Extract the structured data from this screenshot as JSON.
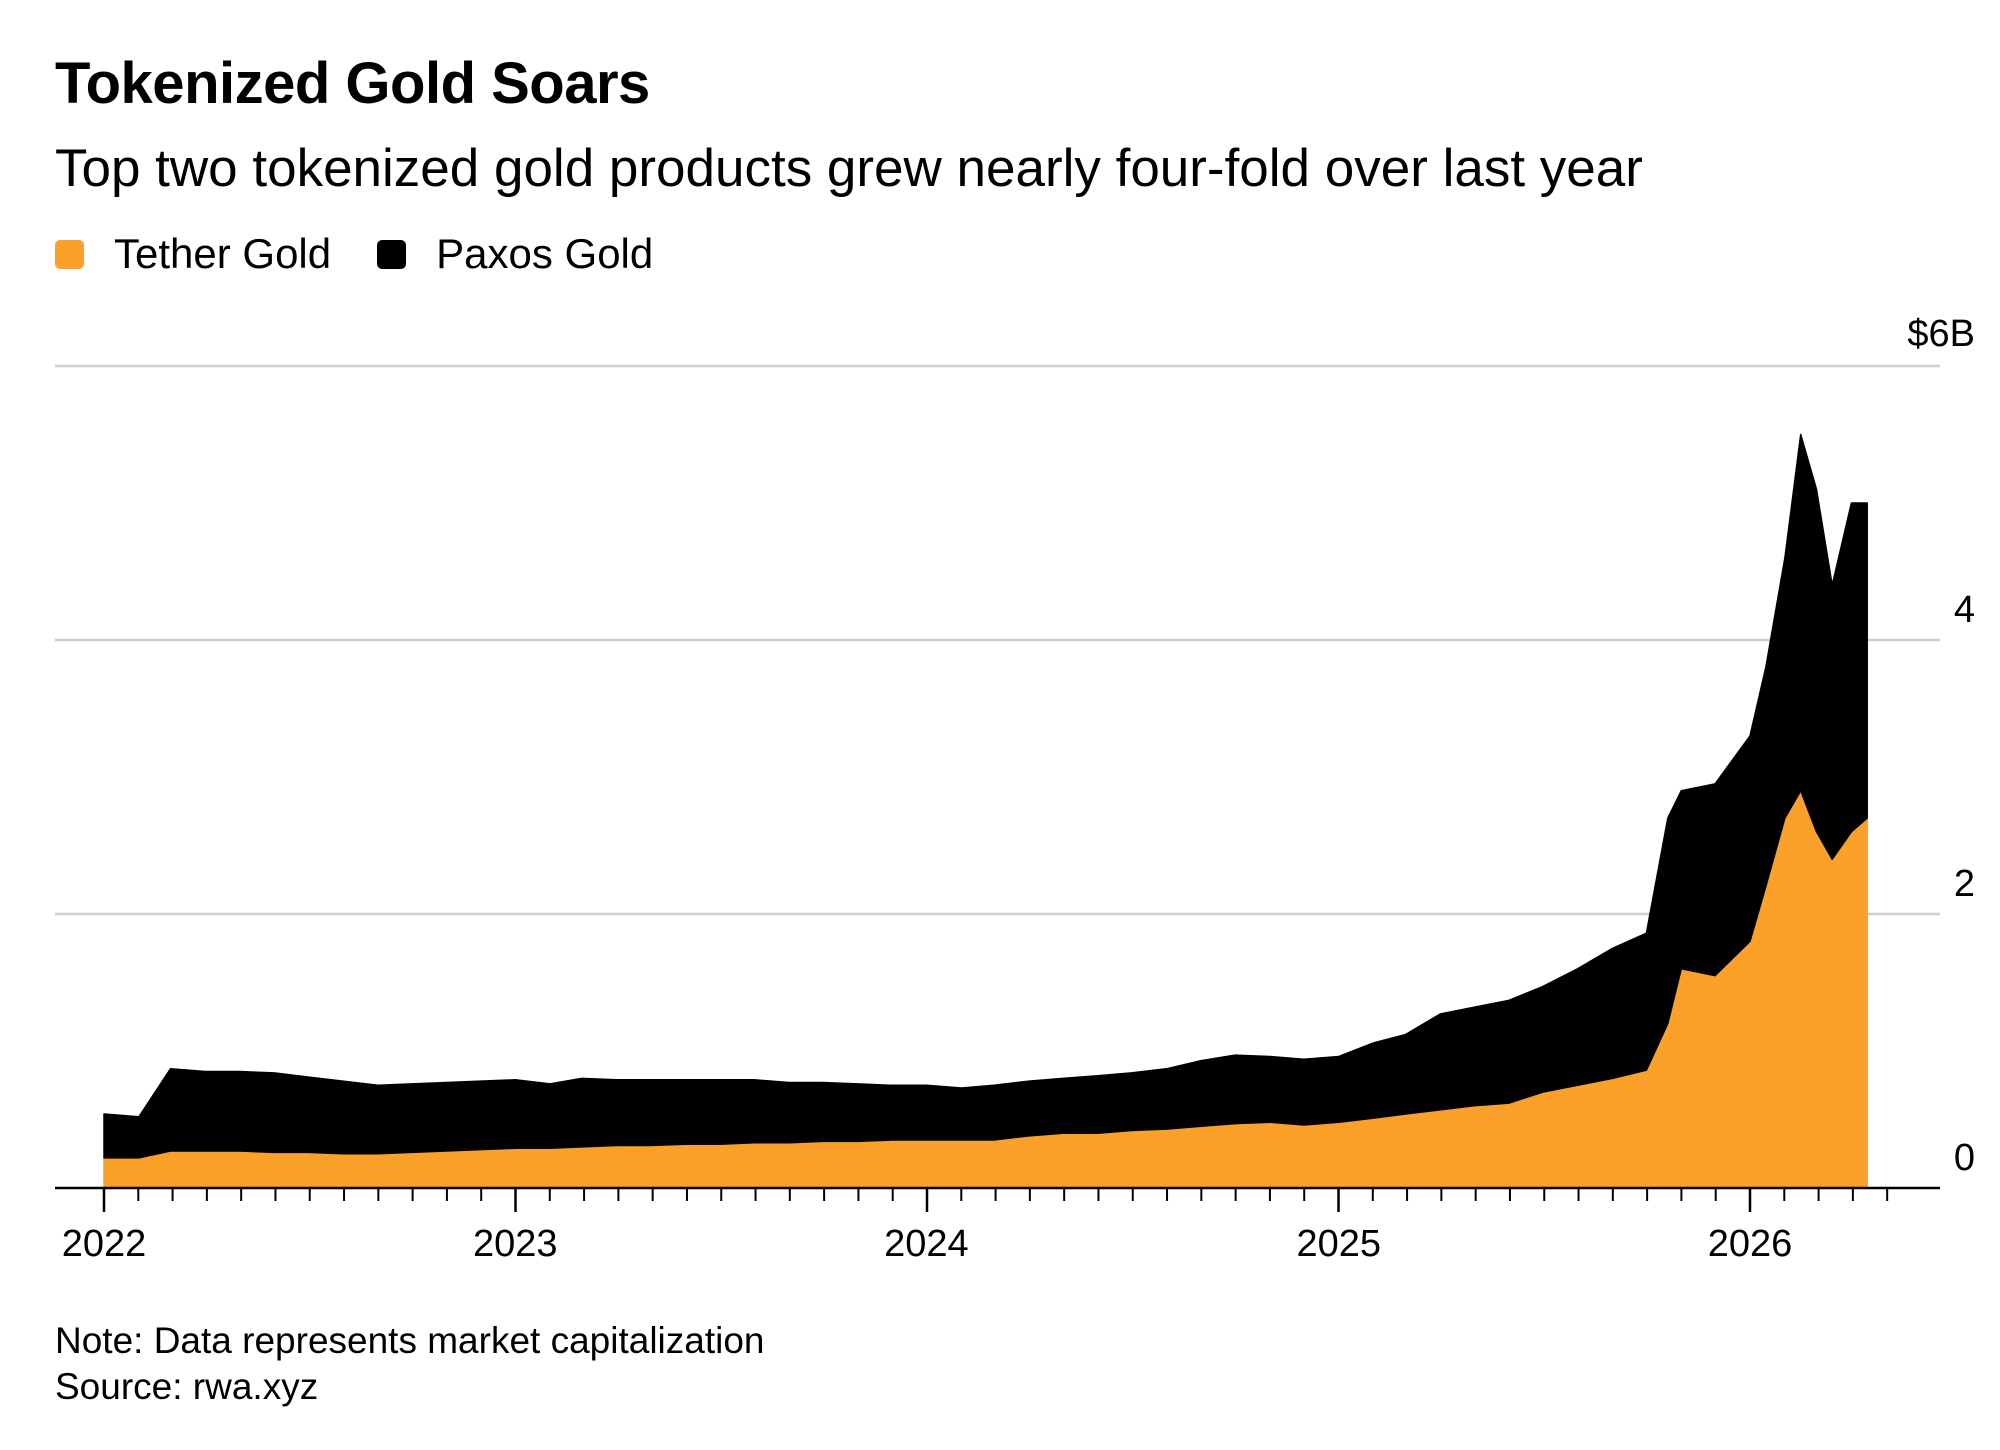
{
  "chart_data": {
    "type": "area",
    "stacked": true,
    "title": "Tokenized Gold Soars",
    "subtitle": "Top two tokenized gold products grew nearly four-fold over last year",
    "note": "Note: Data represents market capitalization",
    "source": "Source: rwa.xyz",
    "legend": {
      "position": "top-left"
    },
    "grid": true,
    "xlim": [
      "2022-01-01",
      "2026-12-31"
    ],
    "ylim": [
      0,
      6
    ],
    "y_ticks": [
      0,
      2,
      4,
      6
    ],
    "y_tick_labels": [
      "0",
      "2",
      "4",
      "$6B"
    ],
    "x_ticks": [
      "2022-01-01",
      "2023-01-01",
      "2024-01-01",
      "2025-01-01",
      "2026-01-01"
    ],
    "x_tick_labels": [
      "2022",
      "2023",
      "2024",
      "2025",
      "2026"
    ],
    "x": [
      "2022-01-01",
      "2022-02-01",
      "2022-03-01",
      "2022-04-01",
      "2022-05-01",
      "2022-06-01",
      "2022-07-01",
      "2022-08-01",
      "2022-09-01",
      "2022-10-01",
      "2022-11-01",
      "2022-12-01",
      "2023-01-01",
      "2023-02-01",
      "2023-03-01",
      "2023-04-01",
      "2023-05-01",
      "2023-06-01",
      "2023-07-01",
      "2023-08-01",
      "2023-09-01",
      "2023-10-01",
      "2023-11-01",
      "2023-12-01",
      "2024-01-01",
      "2024-02-01",
      "2024-03-01",
      "2024-04-01",
      "2024-05-01",
      "2024-06-01",
      "2024-07-01",
      "2024-08-01",
      "2024-09-01",
      "2024-10-01",
      "2024-11-01",
      "2024-12-01",
      "2025-01-01",
      "2025-02-01",
      "2025-03-01",
      "2025-04-01",
      "2025-05-01",
      "2025-06-01",
      "2025-07-01",
      "2025-08-01",
      "2025-09-01",
      "2025-10-01",
      "2025-10-20",
      "2025-11-01",
      "2025-12-01",
      "2026-01-01",
      "2026-01-15",
      "2026-02-01",
      "2026-02-15",
      "2026-03-01",
      "2026-03-15",
      "2026-04-01",
      "2026-04-15"
    ],
    "series": [
      {
        "name": "Tether Gold",
        "color": "#fba028",
        "values": [
          0.22,
          0.22,
          0.27,
          0.27,
          0.27,
          0.26,
          0.26,
          0.25,
          0.25,
          0.26,
          0.27,
          0.28,
          0.29,
          0.29,
          0.3,
          0.31,
          0.31,
          0.32,
          0.32,
          0.33,
          0.33,
          0.34,
          0.34,
          0.35,
          0.35,
          0.35,
          0.35,
          0.38,
          0.4,
          0.4,
          0.42,
          0.43,
          0.45,
          0.47,
          0.48,
          0.46,
          0.48,
          0.51,
          0.54,
          0.57,
          0.6,
          0.62,
          0.7,
          0.75,
          0.8,
          0.86,
          1.2,
          1.6,
          1.55,
          1.8,
          2.2,
          2.7,
          2.9,
          2.6,
          2.4,
          2.6,
          2.7
        ]
      },
      {
        "name": "Paxos Gold",
        "color": "#000000",
        "values": [
          0.32,
          0.3,
          0.6,
          0.58,
          0.58,
          0.58,
          0.55,
          0.53,
          0.5,
          0.5,
          0.5,
          0.5,
          0.5,
          0.47,
          0.5,
          0.48,
          0.48,
          0.47,
          0.47,
          0.46,
          0.44,
          0.43,
          0.42,
          0.4,
          0.4,
          0.38,
          0.4,
          0.4,
          0.4,
          0.42,
          0.42,
          0.44,
          0.48,
          0.5,
          0.48,
          0.48,
          0.48,
          0.55,
          0.58,
          0.7,
          0.72,
          0.75,
          0.77,
          0.85,
          0.95,
          1.0,
          1.5,
          1.3,
          1.4,
          1.5,
          1.6,
          1.9,
          2.6,
          2.5,
          2.0,
          2.4,
          2.3
        ]
      }
    ]
  }
}
